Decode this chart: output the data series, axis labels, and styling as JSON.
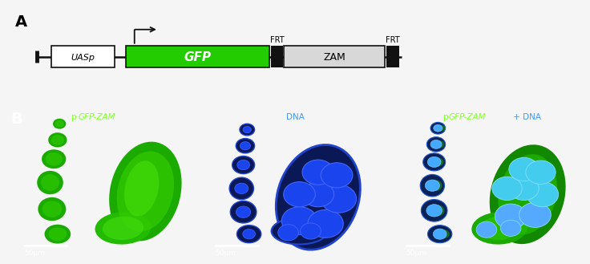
{
  "panel_A_label": "A",
  "panel_B_label": "B",
  "figure_bg": "#f5f5f5",
  "panel_A_bg": "#ffffff",
  "panel_B_bg": "#000000",
  "transgene": {
    "uasp_label": "UASp",
    "gfp_label": "GFP",
    "zam_label": "ZAM",
    "frt_label": "FRT",
    "uasp_fc": "#ffffff",
    "uasp_ec": "#111111",
    "gfp_fc": "#22cc00",
    "gfp_ec": "#111111",
    "zam_fc": "#d8d8d8",
    "zam_ec": "#111111",
    "frt_fc": "#111111",
    "line_color": "#111111",
    "arrow_color": "#111111"
  },
  "microscopy": {
    "green_color": "#33ff00",
    "green_dim": "#1a8800",
    "blue_color": "#2255ee",
    "blue_bright": "#4477ff",
    "blue_dim": "#0a2266",
    "cyan_color": "#44ddee",
    "bg_color": "#000000"
  },
  "labels": [
    {
      "text": "p",
      "style": "normal",
      "color": "#77ff33"
    },
    {
      "text": "GFP-ZAM",
      "style": "italic",
      "color": "#77ff33"
    },
    {
      "text": "DNA",
      "style": "normal",
      "color": "#4499ff"
    },
    {
      "text": "p",
      "style": "normal",
      "color": "#77ff33"
    },
    {
      "text": "GFP-ZAM",
      "style": "italic",
      "color": "#77ff33"
    },
    {
      "text": " + ",
      "style": "normal",
      "color": "#77ff33"
    },
    {
      "text": "DNA",
      "style": "normal",
      "color": "#4499ff"
    }
  ],
  "scale_bar": "50μm"
}
